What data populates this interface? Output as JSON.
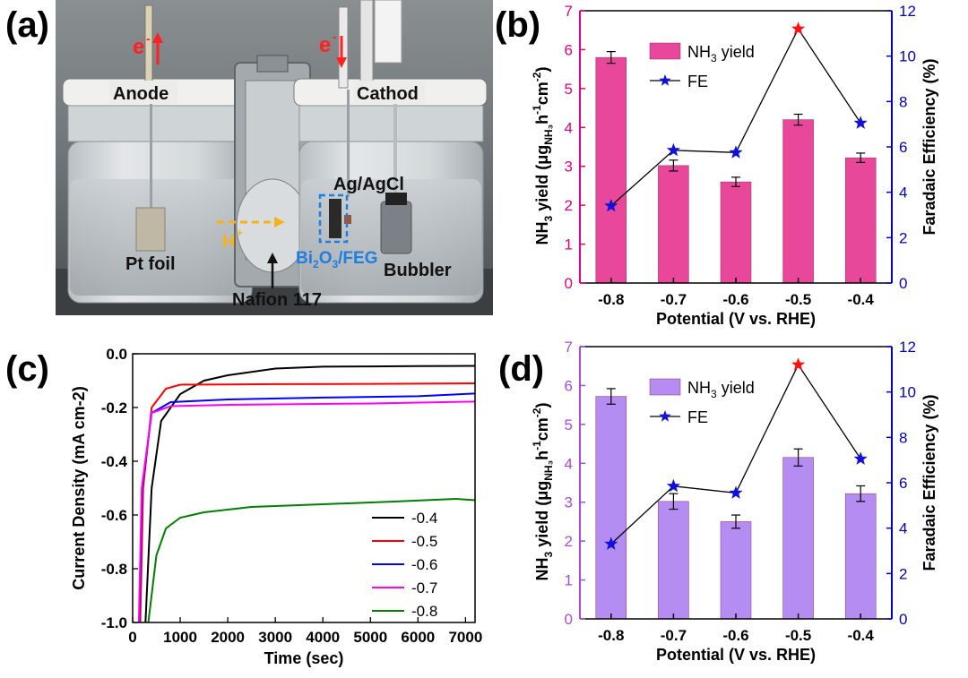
{
  "panels": {
    "a": "(a)",
    "b": "(b)",
    "c": "(c)",
    "d": "(d)"
  },
  "photo": {
    "labels": {
      "e_left": "e",
      "e_right": "e",
      "anode": "Anode",
      "cathode": "Cathod",
      "pt_foil": "Pt foil",
      "h_plus": "H",
      "ag_agcl": "Ag/AgCl",
      "bi2o3": "Bi",
      "bi2o3_rest": "O",
      "bi2o3_end": "/FEG",
      "bubbler": "Bubbler",
      "nafion": "Nafion 117"
    }
  },
  "colors": {
    "pink_bar": "#e8479a",
    "purple_bar": "#b48cf2",
    "left_axis_pink": "#e6007e",
    "left_axis_purple": "#a64ce0",
    "right_axis": "#0000cc",
    "fe_star": "#1010e0",
    "fe_star_max": "#ff1010",
    "line_black": "#000000",
    "line_red": "#ff0000",
    "line_blue": "#0000ff",
    "line_magenta": "#ff00ff",
    "line_green": "#008000"
  },
  "chart_data": [
    {
      "id": "b",
      "type": "bar",
      "categories": [
        "-0.8",
        "-0.7",
        "-0.6",
        "-0.5",
        "-0.4"
      ],
      "series": [
        {
          "name": "NH3 yield",
          "axis": "left",
          "values": [
            5.8,
            3.02,
            2.6,
            4.2,
            3.22
          ],
          "errors": [
            0.15,
            0.14,
            0.12,
            0.14,
            0.12
          ]
        },
        {
          "name": "FE",
          "axis": "right",
          "type": "line",
          "values": [
            3.4,
            5.85,
            5.75,
            11.2,
            7.05
          ]
        }
      ],
      "xlabel": "Potential (V vs. RHE)",
      "ylabel": "NH3 yield (μgNH3h-1cm-2)",
      "y2label": "Faradaic Efficiency (%)",
      "ylim": [
        0,
        7
      ],
      "y2lim": [
        0,
        12
      ],
      "yticks": [
        "0",
        "1",
        "2",
        "3",
        "4",
        "5",
        "6",
        "7"
      ],
      "y2ticks": [
        "0",
        "2",
        "4",
        "6",
        "8",
        "10",
        "12"
      ],
      "legend": [
        "NH3 yield",
        "FE"
      ],
      "legend_position": "top-left"
    },
    {
      "id": "c",
      "type": "line",
      "xlabel": "Time (sec)",
      "ylabel": "Current Density (mA cm-2)",
      "xlim": [
        0,
        7200
      ],
      "ylim": [
        -1.0,
        0.0
      ],
      "xticks": [
        "0",
        "1000",
        "2000",
        "3000",
        "4000",
        "5000",
        "6000",
        "7000"
      ],
      "yticks": [
        "0.0",
        "-0.2",
        "-0.4",
        "-0.6",
        "-0.8",
        "-1.0"
      ],
      "legend_position": "bottom-right",
      "series": [
        {
          "name": "-0.4",
          "points": [
            [
              270,
              -1.0
            ],
            [
              400,
              -0.5
            ],
            [
              600,
              -0.25
            ],
            [
              1000,
              -0.15
            ],
            [
              1500,
              -0.1
            ],
            [
              2000,
              -0.08
            ],
            [
              3000,
              -0.055
            ],
            [
              4000,
              -0.048
            ],
            [
              5000,
              -0.047
            ],
            [
              6000,
              -0.046
            ],
            [
              7200,
              -0.045
            ]
          ]
        },
        {
          "name": "-0.5",
          "points": [
            [
              160,
              -1.0
            ],
            [
              220,
              -0.5
            ],
            [
              400,
              -0.2
            ],
            [
              700,
              -0.13
            ],
            [
              1000,
              -0.115
            ],
            [
              3000,
              -0.113
            ],
            [
              5000,
              -0.112
            ],
            [
              7200,
              -0.11
            ]
          ]
        },
        {
          "name": "-0.6",
          "points": [
            [
              140,
              -1.0
            ],
            [
              200,
              -0.5
            ],
            [
              400,
              -0.22
            ],
            [
              800,
              -0.18
            ],
            [
              2000,
              -0.17
            ],
            [
              4000,
              -0.163
            ],
            [
              6000,
              -0.158
            ],
            [
              7200,
              -0.148
            ]
          ]
        },
        {
          "name": "-0.7",
          "points": [
            [
              130,
              -1.0
            ],
            [
              190,
              -0.5
            ],
            [
              400,
              -0.22
            ],
            [
              800,
              -0.195
            ],
            [
              2000,
              -0.19
            ],
            [
              5000,
              -0.185
            ],
            [
              7200,
              -0.178
            ]
          ]
        },
        {
          "name": "-0.8",
          "points": [
            [
              330,
              -1.0
            ],
            [
              500,
              -0.75
            ],
            [
              700,
              -0.65
            ],
            [
              1000,
              -0.61
            ],
            [
              1500,
              -0.59
            ],
            [
              2500,
              -0.57
            ],
            [
              4000,
              -0.56
            ],
            [
              5500,
              -0.55
            ],
            [
              6800,
              -0.54
            ],
            [
              7200,
              -0.545
            ]
          ]
        }
      ]
    },
    {
      "id": "d",
      "type": "bar",
      "categories": [
        "-0.8",
        "-0.7",
        "-0.6",
        "-0.5",
        "-0.4"
      ],
      "series": [
        {
          "name": "NH3 yield",
          "axis": "left",
          "values": [
            5.72,
            3.02,
            2.5,
            4.15,
            3.22
          ],
          "errors": [
            0.2,
            0.2,
            0.17,
            0.22,
            0.2
          ]
        },
        {
          "name": "FE",
          "axis": "right",
          "type": "line",
          "values": [
            3.3,
            5.85,
            5.55,
            11.2,
            7.05
          ]
        }
      ],
      "xlabel": "Potential (V vs. RHE)",
      "ylabel": "NH3 yield (μgNH3h-1cm-2)",
      "y2label": "Faradaic Efficiency (%)",
      "ylim": [
        0,
        7
      ],
      "y2lim": [
        0,
        12
      ],
      "yticks": [
        "0",
        "1",
        "2",
        "3",
        "4",
        "5",
        "6",
        "7"
      ],
      "y2ticks": [
        "0",
        "2",
        "4",
        "6",
        "8",
        "10",
        "12"
      ],
      "legend": [
        "NH3 yield",
        "FE"
      ],
      "legend_position": "top-left"
    }
  ]
}
